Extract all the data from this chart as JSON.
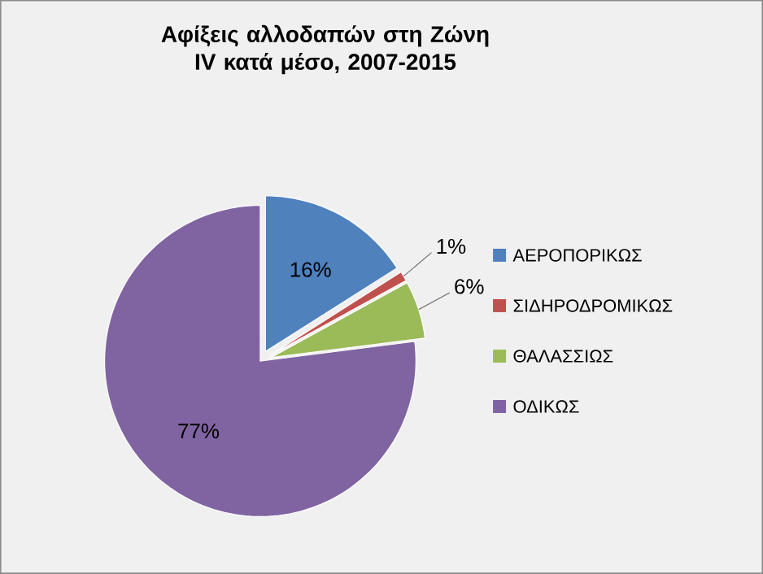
{
  "chart_data": {
    "type": "pie",
    "title": "Αφίξεις  αλλοδαπών στη Ζώνη IV κατά μέσο, 2007-2015",
    "categories": [
      "ΑΕΡΟΠΟΡΙΚΩΣ",
      "ΣΙΔΗΡΟΔΡΟΜΙΚΩΣ",
      "ΘΑΛΑΣΣΙΩΣ",
      "ΟΔΙΚΩΣ"
    ],
    "values": [
      16,
      1,
      6,
      77
    ],
    "value_labels": [
      "16%",
      "1%",
      "6%",
      "77%"
    ],
    "colors": [
      "#4f81bd",
      "#c0504d",
      "#9bbb59",
      "#8064a2"
    ],
    "legend": "right"
  }
}
